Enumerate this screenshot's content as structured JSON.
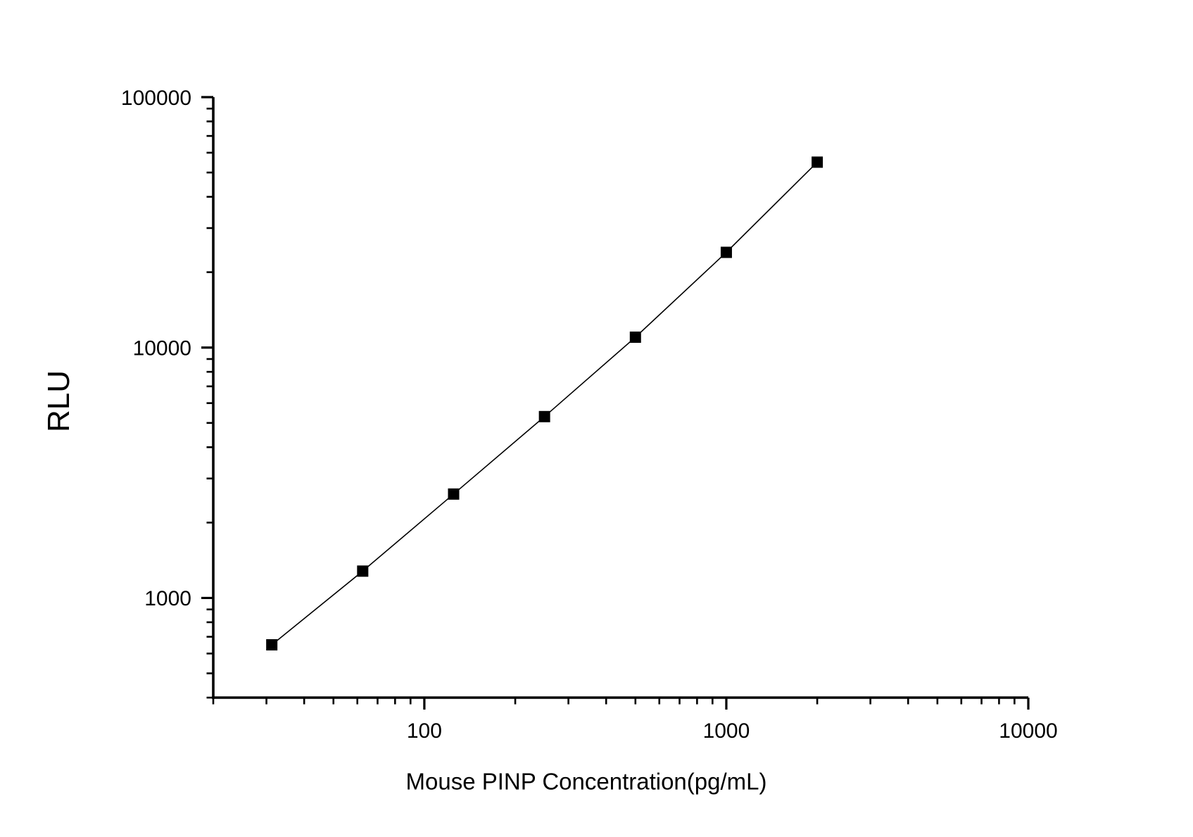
{
  "figure": {
    "background": "#ffffff"
  },
  "chart_data": {
    "type": "line",
    "subtype": "scatter-with-line-log-log-standard-curve",
    "xlabel": "Mouse PINP Concentration(pg/mL)",
    "ylabel": "RLU",
    "x_scale": "log",
    "y_scale": "log",
    "xlim": [
      20,
      10000
    ],
    "ylim": [
      400,
      100000
    ],
    "x_major_ticks": [
      100,
      1000,
      10000
    ],
    "x_tick_labels": [
      "100",
      "1000",
      "10000"
    ],
    "y_major_ticks": [
      1000,
      10000,
      100000
    ],
    "y_tick_labels": [
      "1000",
      "10000",
      "100000"
    ],
    "minor_log_ticks": true,
    "grid": false,
    "legend": false,
    "frame": "left-and-bottom-axes-only",
    "axis_color": "#000000",
    "text_color": "#000000",
    "series": [
      {
        "name": "standard-curve",
        "marker": "filled-square",
        "line": true,
        "color": "#000000",
        "x": [
          31.25,
          62.5,
          125,
          250,
          500,
          1000,
          2000
        ],
        "y": [
          650,
          1280,
          2600,
          5300,
          11000,
          24000,
          55000
        ]
      }
    ]
  }
}
